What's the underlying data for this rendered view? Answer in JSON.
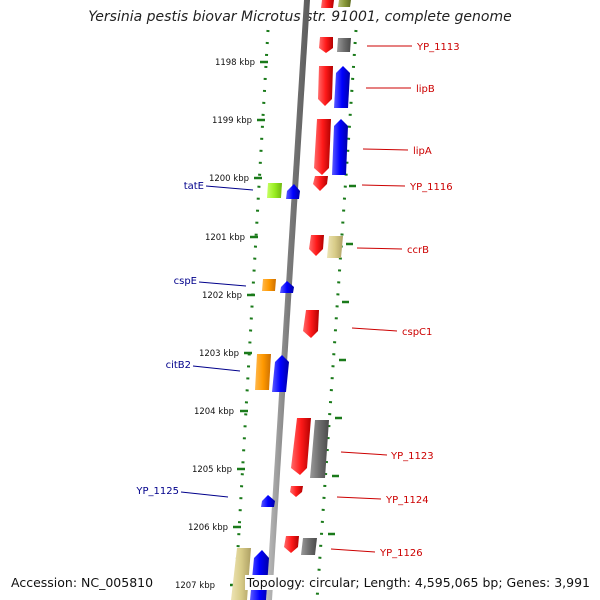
{
  "title": "Yersinia pestis biovar Microtus str. 91001, complete genome",
  "accession": "Accession: NC_005810",
  "summary": "Topology: circular; Length: 4,595,065 bp; Genes: 3,991",
  "colors": {
    "forward_label": "#cc0000",
    "reverse_label": "#00008b",
    "backbone": "#888888",
    "tick": "#1a7a1a"
  },
  "scale": [
    "1198 kbp",
    "1199 kbp",
    "1200 kbp",
    "1201 kbp",
    "1202 kbp",
    "1203 kbp",
    "1204 kbp",
    "1205 kbp",
    "1206 kbp",
    "1207 kbp"
  ],
  "forward_labels": [
    "YP_1113",
    "lipB",
    "lipA",
    "YP_1116",
    "ccrB",
    "cspC1",
    "YP_1123",
    "YP_1124",
    "YP_1126"
  ],
  "reverse_labels": [
    "tatE",
    "cspE",
    "citB2",
    "YP_1125"
  ]
}
